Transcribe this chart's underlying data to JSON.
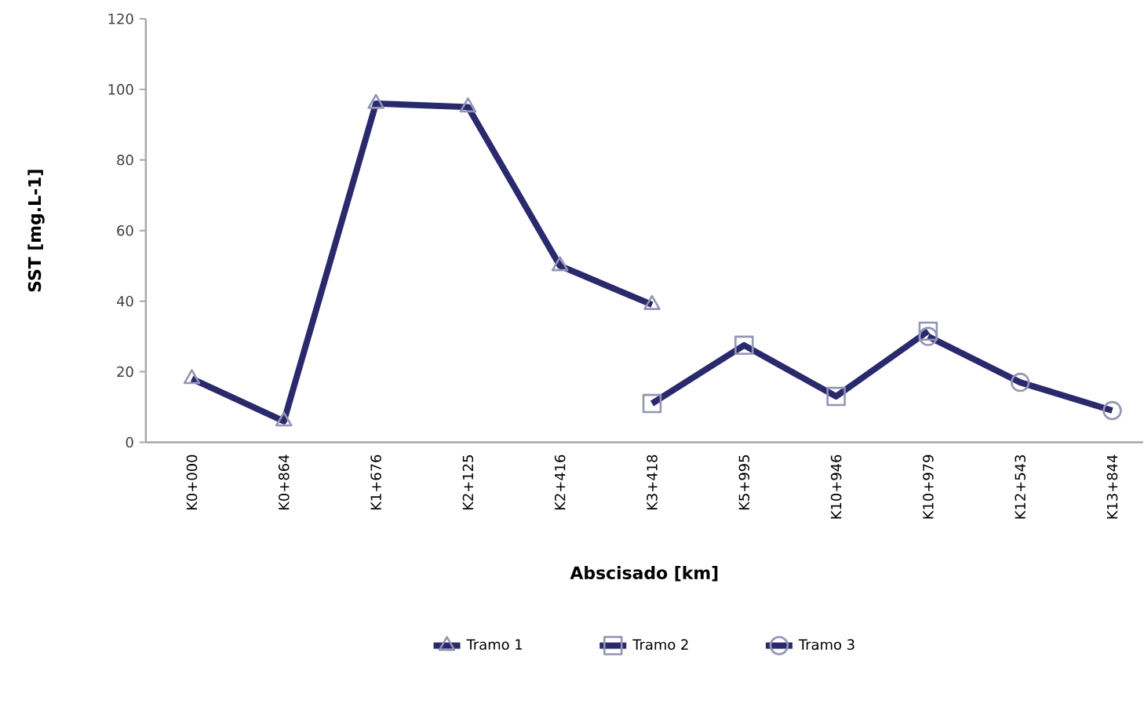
{
  "chart_data": {
    "type": "line",
    "xlabel": "Abscisado [km]",
    "ylabel": "SST [mg.L-1]",
    "categories": [
      "K0+000",
      "K0+864",
      "K1+676",
      "K2+125",
      "K2+416",
      "K3+418",
      "K5+995",
      "K10+946",
      "K10+979",
      "K12+543",
      "K13+844"
    ],
    "ylim": [
      0,
      120
    ],
    "yticks": [
      0,
      20,
      40,
      60,
      80,
      100,
      120
    ],
    "legend": "bottom",
    "grid": false,
    "line_style": "solid",
    "series": [
      {
        "name": "Tramo 1",
        "color": "#28296e",
        "marker": "triangle",
        "values": [
          18,
          6,
          96,
          95,
          50,
          39,
          null,
          null,
          null,
          null,
          null
        ]
      },
      {
        "name": "Tramo 2",
        "color": "#28296e",
        "marker": "square",
        "values": [
          null,
          null,
          null,
          null,
          null,
          11,
          27.5,
          13,
          31.5,
          null,
          null
        ]
      },
      {
        "name": "Tramo 3",
        "color": "#28296e",
        "marker": "circle",
        "values": [
          null,
          null,
          null,
          null,
          null,
          null,
          null,
          null,
          30,
          17,
          9
        ]
      }
    ]
  }
}
